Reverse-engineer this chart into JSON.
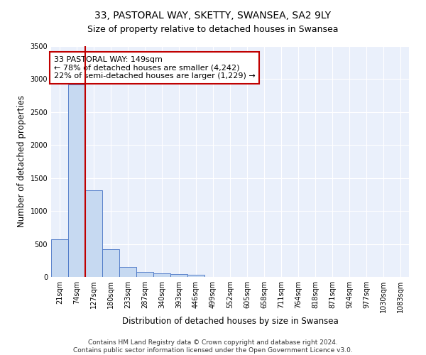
{
  "title_line1": "33, PASTORAL WAY, SKETTY, SWANSEA, SA2 9LY",
  "title_line2": "Size of property relative to detached houses in Swansea",
  "xlabel": "Distribution of detached houses by size in Swansea",
  "ylabel": "Number of detached properties",
  "categories": [
    "21sqm",
    "74sqm",
    "127sqm",
    "180sqm",
    "233sqm",
    "287sqm",
    "340sqm",
    "393sqm",
    "446sqm",
    "499sqm",
    "552sqm",
    "605sqm",
    "658sqm",
    "711sqm",
    "764sqm",
    "818sqm",
    "871sqm",
    "924sqm",
    "977sqm",
    "1030sqm",
    "1083sqm"
  ],
  "values": [
    570,
    2920,
    1310,
    415,
    155,
    80,
    55,
    45,
    35,
    0,
    0,
    0,
    0,
    0,
    0,
    0,
    0,
    0,
    0,
    0,
    0
  ],
  "bar_color": "#c6d9f1",
  "bar_edge_color": "#4472c4",
  "ylim": [
    0,
    3500
  ],
  "yticks": [
    0,
    500,
    1000,
    1500,
    2000,
    2500,
    3000,
    3500
  ],
  "vline_x": 2,
  "vline_color": "#c00000",
  "annotation_text": "33 PASTORAL WAY: 149sqm\n← 78% of detached houses are smaller (4,242)\n22% of semi-detached houses are larger (1,229) →",
  "annotation_box_color": "#c00000",
  "footer_line1": "Contains HM Land Registry data © Crown copyright and database right 2024.",
  "footer_line2": "Contains public sector information licensed under the Open Government Licence v3.0.",
  "bg_color": "#eaf0fb",
  "grid_color": "#ffffff",
  "title_fontsize": 10,
  "subtitle_fontsize": 9,
  "axis_label_fontsize": 8.5,
  "tick_fontsize": 7,
  "annotation_fontsize": 8,
  "footer_fontsize": 6.5
}
